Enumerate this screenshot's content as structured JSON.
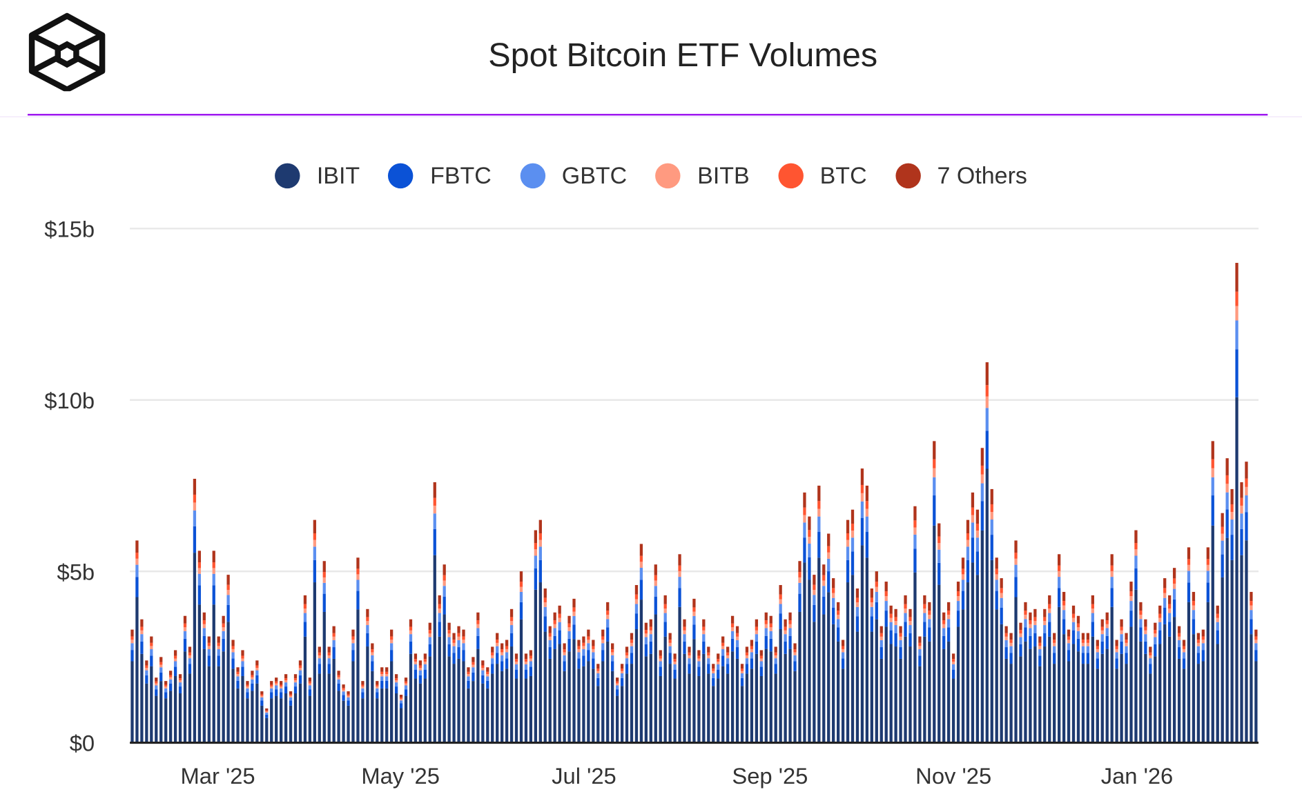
{
  "chart_data": {
    "type": "bar",
    "stacked": true,
    "title": "Spot Bitcoin ETF Volumes",
    "xlabel": "",
    "ylabel": "",
    "ylim": [
      0,
      15
    ],
    "y_unit": "$b",
    "y_ticks": [
      "$0",
      "$5b",
      "$10b",
      "$15b"
    ],
    "y_tick_values": [
      0,
      5,
      10,
      15
    ],
    "x_ticks": [
      "Mar '25",
      "May '25",
      "Jul '25",
      "Sep '25",
      "Nov '25",
      "Jan '26"
    ],
    "x_tick_positions_trading_day": [
      19,
      61,
      103,
      146,
      188,
      230
    ],
    "legend_position": "top-center",
    "grid": true,
    "series_names": [
      "IBIT",
      "FBTC",
      "GBTC",
      "BITB",
      "BTC",
      "7 Others"
    ],
    "series_colors": [
      "#1e3a70",
      "#0b52d6",
      "#5b8ff0",
      "#ff9a80",
      "#ff5531",
      "#b0341c"
    ],
    "approx_series_share": [
      0.72,
      0.1,
      0.06,
      0.03,
      0.03,
      0.06
    ],
    "daily_total_volume_b": [
      3.3,
      5.9,
      3.6,
      2.4,
      3.1,
      1.9,
      2.5,
      1.8,
      2.1,
      2.7,
      2.0,
      3.7,
      2.8,
      7.7,
      5.6,
      3.8,
      3.1,
      5.6,
      3.1,
      3.7,
      4.9,
      3.0,
      2.2,
      2.7,
      1.8,
      2.1,
      2.4,
      1.5,
      1.0,
      1.8,
      1.9,
      1.8,
      2.0,
      1.5,
      2.0,
      2.4,
      4.3,
      1.9,
      6.5,
      2.8,
      5.3,
      2.8,
      3.4,
      2.1,
      1.7,
      1.5,
      3.3,
      5.4,
      1.8,
      3.9,
      2.9,
      1.8,
      2.2,
      2.2,
      3.3,
      2.0,
      1.4,
      1.9,
      3.6,
      2.6,
      2.4,
      2.6,
      3.5,
      7.6,
      4.3,
      5.2,
      3.5,
      3.2,
      3.4,
      3.3,
      2.2,
      2.5,
      3.8,
      2.4,
      2.2,
      2.8,
      3.2,
      2.9,
      3.0,
      3.9,
      2.6,
      5.0,
      2.6,
      2.7,
      6.2,
      6.5,
      4.5,
      3.4,
      3.8,
      4.0,
      2.9,
      3.7,
      4.2,
      3.0,
      3.1,
      3.3,
      3.0,
      2.3,
      3.3,
      4.1,
      2.9,
      1.9,
      2.3,
      2.8,
      3.2,
      4.6,
      5.8,
      3.5,
      3.6,
      5.2,
      2.7,
      4.3,
      3.2,
      2.6,
      5.5,
      3.6,
      2.8,
      4.2,
      2.7,
      3.6,
      2.8,
      2.3,
      2.6,
      3.1,
      2.8,
      3.7,
      3.4,
      2.3,
      2.8,
      3.0,
      3.6,
      2.7,
      3.8,
      3.7,
      2.8,
      4.6,
      3.6,
      3.8,
      2.9,
      5.3,
      7.3,
      6.6,
      4.9,
      7.5,
      5.2,
      6.1,
      4.8,
      4.1,
      3.0,
      6.5,
      6.8,
      4.5,
      8.0,
      7.5,
      4.5,
      5.0,
      3.4,
      4.7,
      4.0,
      3.9,
      3.4,
      4.3,
      3.9,
      6.9,
      3.1,
      4.3,
      4.1,
      8.8,
      6.4,
      3.8,
      4.1,
      2.6,
      4.7,
      5.4,
      6.5,
      7.3,
      6.8,
      8.6,
      11.1,
      7.4,
      5.4,
      4.8,
      3.4,
      3.2,
      5.9,
      3.5,
      4.1,
      3.8,
      3.9,
      3.1,
      3.9,
      4.3,
      3.2,
      5.5,
      4.4,
      3.3,
      4.0,
      3.7,
      3.2,
      3.2,
      4.3,
      3.0,
      3.6,
      3.8,
      5.5,
      3.0,
      3.6,
      3.2,
      4.7,
      6.2,
      4.1,
      3.6,
      2.8,
      3.5,
      4.0,
      4.8,
      4.3,
      5.1,
      3.4,
      3.0,
      5.7,
      4.4,
      3.2,
      3.3,
      5.7,
      8.8,
      4.0,
      6.7,
      8.3,
      7.4,
      14.0,
      7.6,
      8.2,
      4.4,
      3.3
    ]
  }
}
